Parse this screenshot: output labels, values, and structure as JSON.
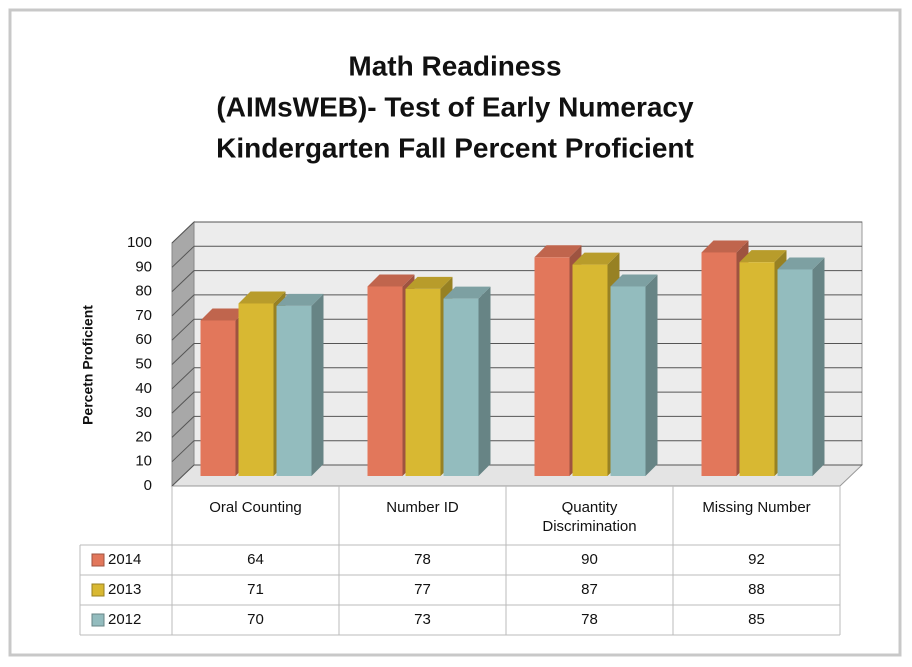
{
  "chart_data": {
    "type": "bar3d",
    "title": [
      "Math Readiness",
      "(AIMsWEB)- Test of Early Numeracy",
      "Kindergarten Fall Percent Proficient"
    ],
    "y_label": "Percetn Proficient",
    "categories": [
      "Oral Counting",
      "Number ID",
      "Quantity Discrimination",
      "Missing Number"
    ],
    "series": [
      {
        "name": "2014",
        "color": "#e2775b",
        "values": [
          64,
          78,
          90,
          92
        ]
      },
      {
        "name": "2013",
        "color": "#d8b832",
        "values": [
          71,
          77,
          87,
          88
        ]
      },
      {
        "name": "2012",
        "color": "#93bcbe",
        "values": [
          70,
          73,
          78,
          85
        ]
      }
    ],
    "ylim": [
      0,
      100
    ],
    "yticks": [
      0,
      10,
      20,
      30,
      40,
      50,
      60,
      70,
      80,
      90,
      100
    ],
    "grid": true,
    "data_table": true
  }
}
